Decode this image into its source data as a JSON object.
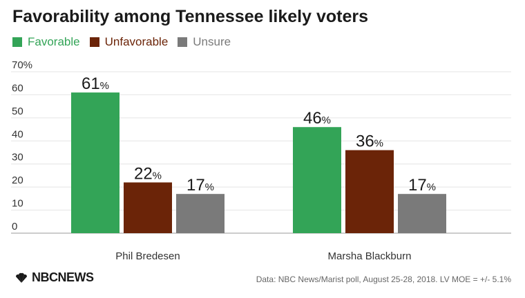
{
  "title": "Favorability among Tennessee likely voters",
  "source": "Data: NBC News/Marist poll, August 25-28, 2018. LV MOE = +/- 5.1%",
  "logo_text": "NBCNEWS",
  "chart_data": {
    "type": "bar",
    "title": "Favorability among Tennessee likely voters",
    "categories": [
      "Phil Bredesen",
      "Marsha Blackburn"
    ],
    "series": [
      {
        "name": "Favorable",
        "values": [
          61,
          46
        ],
        "color": "#33a457"
      },
      {
        "name": "Unfavorable",
        "values": [
          22,
          36
        ],
        "color": "#6b2408"
      },
      {
        "name": "Unsure",
        "values": [
          17,
          17
        ],
        "color": "#7a7a7a"
      }
    ],
    "yticks": [
      "0",
      "10",
      "20",
      "30",
      "40",
      "50",
      "60",
      "70%"
    ],
    "ylim": [
      0,
      70
    ],
    "value_suffix": "%",
    "grid": true,
    "legend_position": "top-left",
    "xlabel": "",
    "ylabel": ""
  }
}
